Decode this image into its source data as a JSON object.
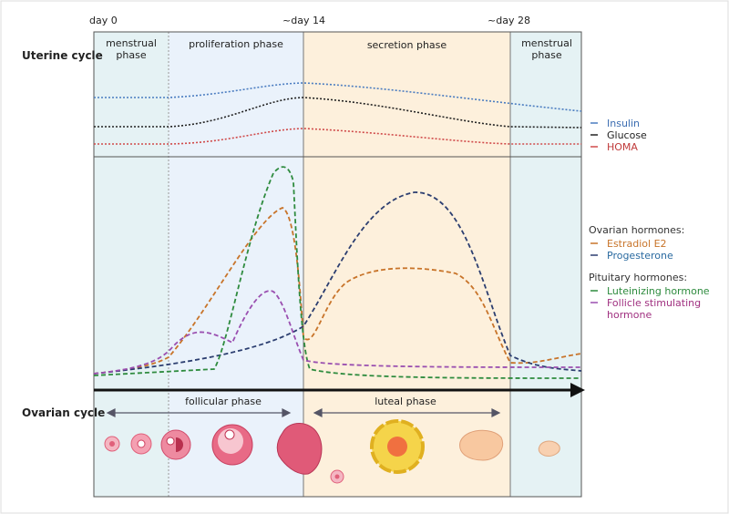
{
  "header": {
    "day_labels": [
      "day 0",
      "~day 14",
      "~day 28"
    ]
  },
  "rows": {
    "uterine": "Uterine cycle",
    "ovarian": "Ovarian cycle"
  },
  "uterine_phases": [
    "menstrual phase",
    "proliferation phase",
    "secretion phase",
    "menstrual phase"
  ],
  "legend": {
    "metabolic": [
      "Insulin",
      "Glucose",
      "HOMA"
    ],
    "ovarian_heading": "Ovarian hormones:",
    "ovarian": [
      "Estradiol E2",
      "Progesterone"
    ],
    "pituitary_heading": "Pituitary hormones:",
    "pituitary": [
      "Luteinizing hormone",
      "Follicle stimulating hormone"
    ]
  },
  "ovarian_phases": [
    "follicular phase",
    "luteal phase"
  ]
}
